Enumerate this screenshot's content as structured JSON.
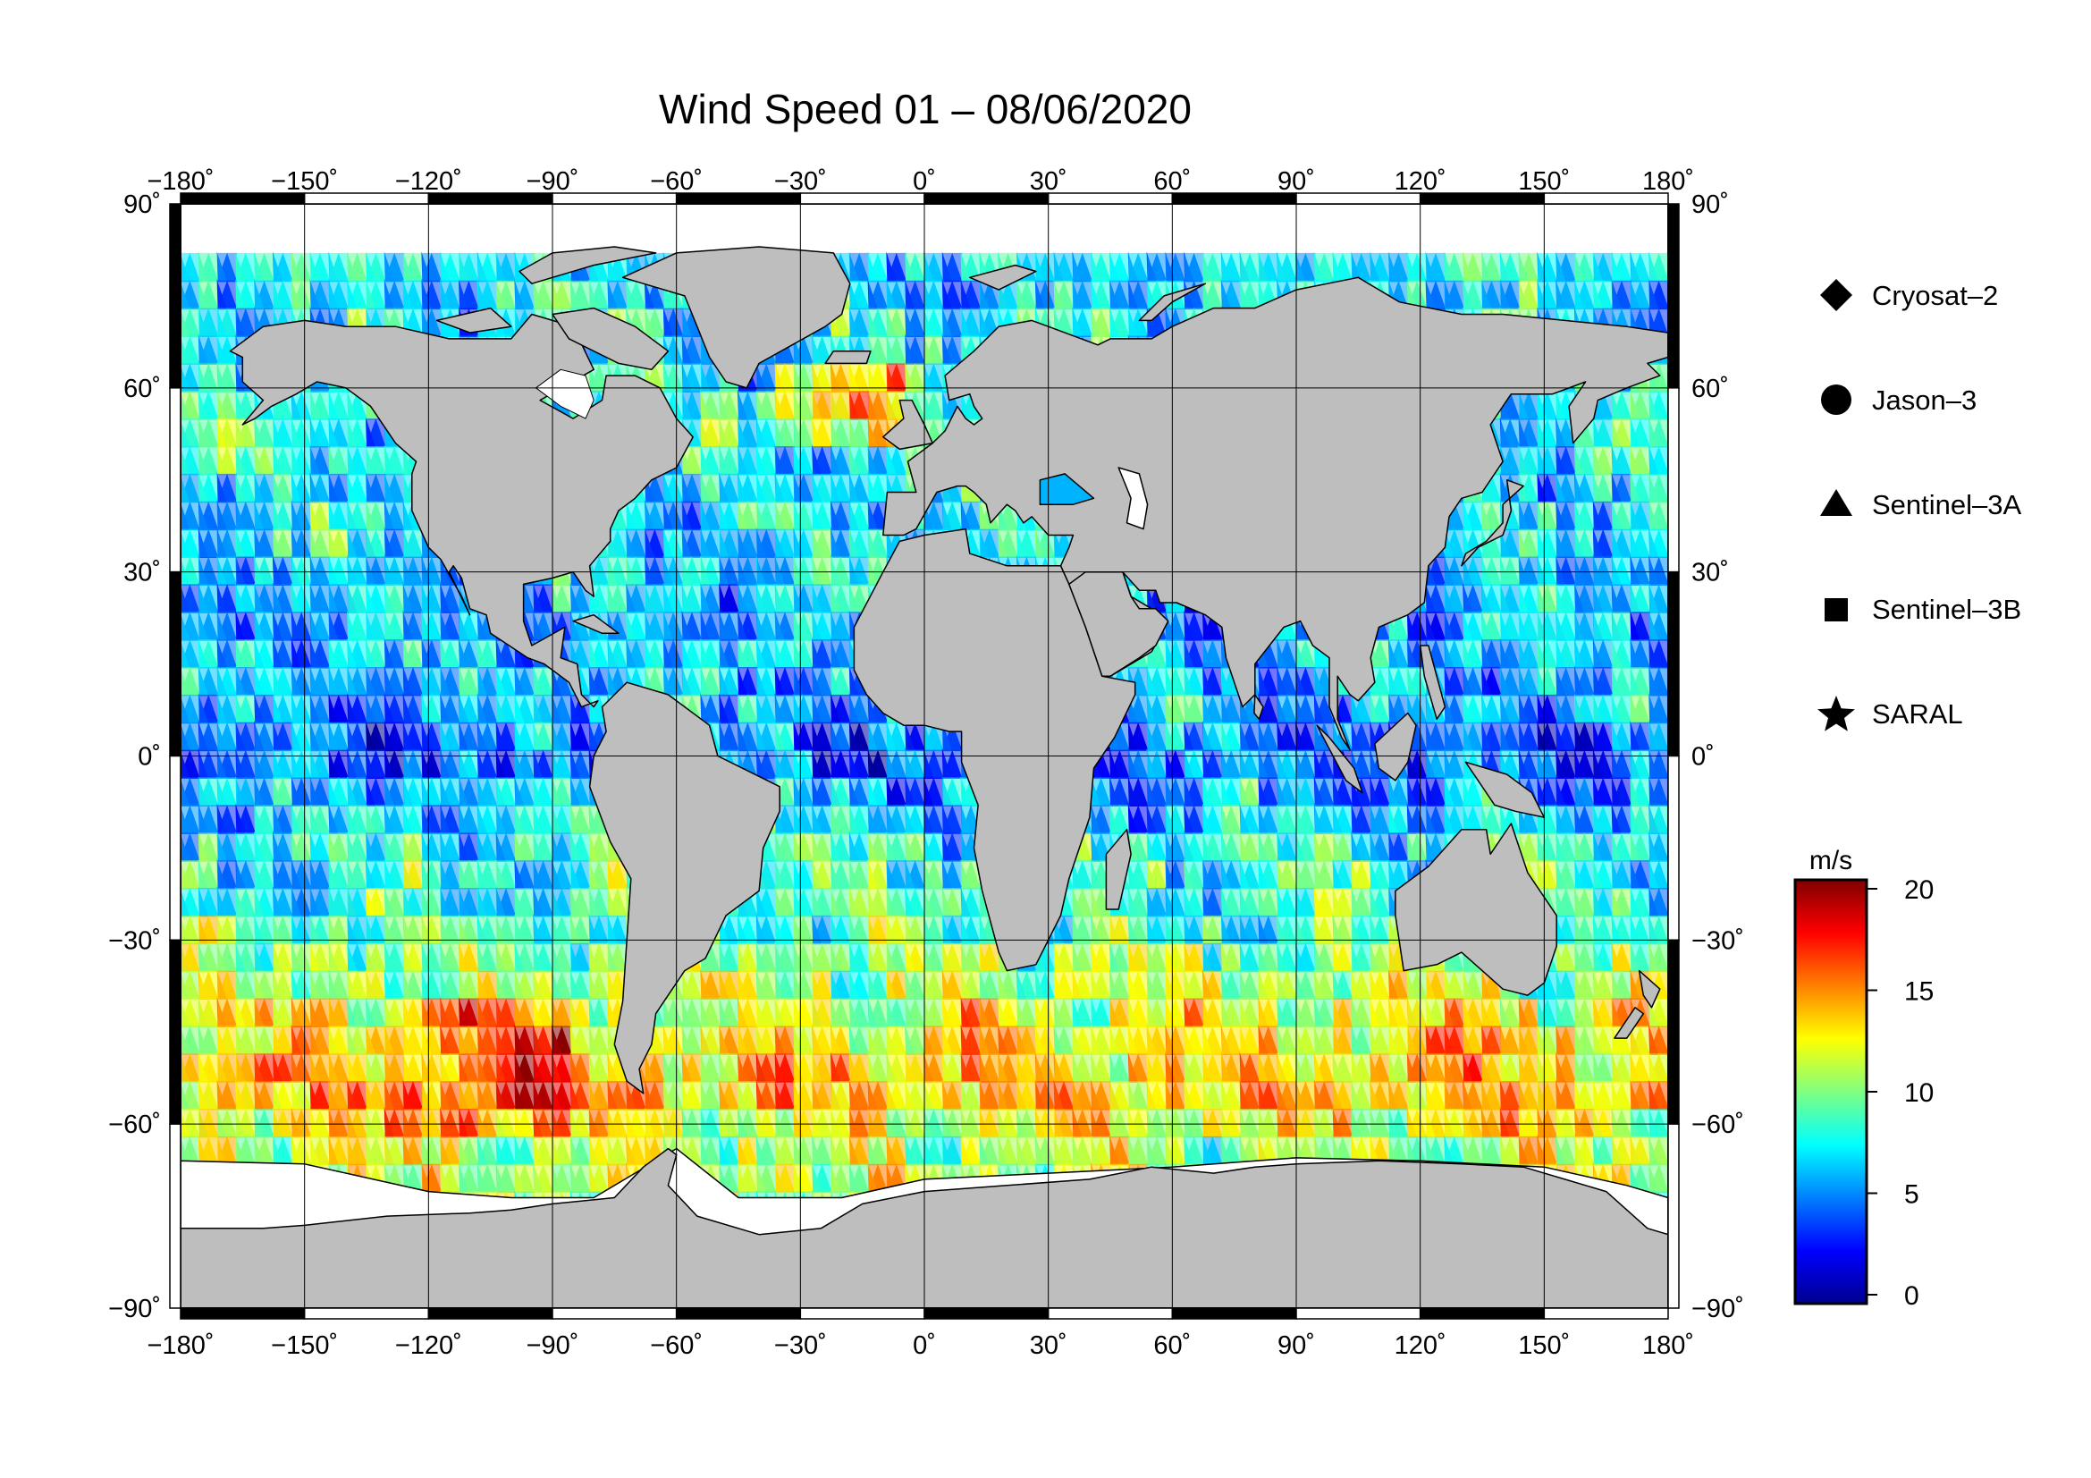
{
  "title": "Wind Speed 01 – 08/06/2020",
  "map": {
    "projection": "equirectangular",
    "lon_range": [
      -180,
      180
    ],
    "lat_range": [
      -90,
      90
    ],
    "lon_ticks": [
      "−180˚",
      "−150˚",
      "−120˚",
      "−90˚",
      "−60˚",
      "−30˚",
      "0˚",
      "30˚",
      "60˚",
      "90˚",
      "120˚",
      "150˚",
      "180˚"
    ],
    "lat_ticks": [
      "90˚",
      "60˚",
      "30˚",
      "0˚",
      "−30˚",
      "−60˚",
      "−90˚"
    ],
    "grid": true,
    "land_color": "#bebebe",
    "ice_color": "#ffffff",
    "coastline_color": "#000000"
  },
  "legend": {
    "placement": "right",
    "items": [
      {
        "label": "Cryosat–2",
        "marker": "diamond"
      },
      {
        "label": "Jason–3",
        "marker": "circle"
      },
      {
        "label": "Sentinel–3A",
        "marker": "triangle"
      },
      {
        "label": "Sentinel–3B",
        "marker": "square"
      },
      {
        "label": "SARAL",
        "marker": "star"
      }
    ]
  },
  "colorbar": {
    "unit": "m/s",
    "range": [
      0,
      20
    ],
    "ticks": [
      "20",
      "15",
      "10",
      "5",
      "0"
    ],
    "colormap": [
      "#00008f",
      "#0000ff",
      "#0080ff",
      "#00ffff",
      "#80ff80",
      "#ffff00",
      "#ff8000",
      "#ff0000",
      "#800000"
    ]
  },
  "chart_data": {
    "type": "heatmap",
    "title": "Wind Speed 01 – 08/06/2020",
    "value_unit": "m/s",
    "value_range": [
      0,
      20
    ],
    "x_axis": "longitude",
    "y_axis": "latitude",
    "xlim": [
      -180,
      180
    ],
    "ylim": [
      -90,
      90
    ],
    "grid": true,
    "zonal_mean_wind_speed": [
      {
        "lat": 70,
        "value": 7
      },
      {
        "lat": 55,
        "value": 8
      },
      {
        "lat": 40,
        "value": 7
      },
      {
        "lat": 25,
        "value": 6
      },
      {
        "lat": 10,
        "value": 6
      },
      {
        "lat": 0,
        "value": 4
      },
      {
        "lat": -15,
        "value": 8
      },
      {
        "lat": -30,
        "value": 9
      },
      {
        "lat": -45,
        "value": 13
      },
      {
        "lat": -55,
        "value": 14
      },
      {
        "lat": -62,
        "value": 11
      }
    ],
    "series": [
      {
        "name": "Cryosat–2",
        "marker": "diamond"
      },
      {
        "name": "Jason–3",
        "marker": "circle"
      },
      {
        "name": "Sentinel–3A",
        "marker": "triangle"
      },
      {
        "name": "Sentinel–3B",
        "marker": "square"
      },
      {
        "name": "SARAL",
        "marker": "star"
      }
    ]
  }
}
